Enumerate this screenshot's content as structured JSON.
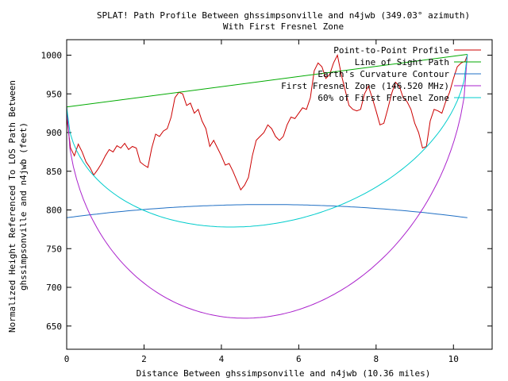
{
  "chart_data": {
    "type": "line",
    "title": "SPLAT! Path Profile Between ghssimpsonville and n4jwb (349.03° azimuth)",
    "subtitle": "With First Fresnel Zone",
    "xlabel": "Distance Between ghssimpsonville and n4jwb (10.36 miles)",
    "ylabel_line1": "Normalized Height Referenced To LOS Path Between",
    "ylabel_line2": "ghssimpsonville and n4jwb (feet)",
    "xlim": [
      0,
      11
    ],
    "ylim": [
      620,
      1020
    ],
    "xticks": [
      "0",
      "2",
      "4",
      "6",
      "8",
      "10"
    ],
    "yticks": [
      "650",
      "700",
      "750",
      "800",
      "850",
      "900",
      "950",
      "1000"
    ],
    "legend_position": "top-right",
    "grid": false,
    "series": [
      {
        "name": "Point-to-Point Profile",
        "color": "#cc0000",
        "x": [
          0,
          0.1,
          0.2,
          0.3,
          0.4,
          0.5,
          0.6,
          0.7,
          0.8,
          0.9,
          1.0,
          1.1,
          1.2,
          1.3,
          1.4,
          1.5,
          1.6,
          1.7,
          1.8,
          1.9,
          2.0,
          2.1,
          2.2,
          2.3,
          2.4,
          2.5,
          2.6,
          2.7,
          2.8,
          2.9,
          3.0,
          3.1,
          3.2,
          3.3,
          3.4,
          3.5,
          3.6,
          3.7,
          3.8,
          3.9,
          4.0,
          4.1,
          4.2,
          4.3,
          4.4,
          4.5,
          4.6,
          4.7,
          4.8,
          4.9,
          5.0,
          5.1,
          5.2,
          5.3,
          5.4,
          5.5,
          5.6,
          5.7,
          5.8,
          5.9,
          6.0,
          6.1,
          6.2,
          6.3,
          6.4,
          6.5,
          6.6,
          6.7,
          6.8,
          6.9,
          7.0,
          7.1,
          7.2,
          7.3,
          7.4,
          7.5,
          7.6,
          7.7,
          7.8,
          7.9,
          8.0,
          8.1,
          8.2,
          8.3,
          8.4,
          8.5,
          8.6,
          8.7,
          8.8,
          8.9,
          9.0,
          9.1,
          9.2,
          9.3,
          9.4,
          9.5,
          9.6,
          9.7,
          9.8,
          9.9,
          10.0,
          10.1,
          10.2,
          10.3,
          10.36
        ],
        "y": [
          920,
          880,
          870,
          885,
          875,
          862,
          855,
          845,
          852,
          860,
          870,
          878,
          875,
          883,
          880,
          886,
          878,
          882,
          880,
          862,
          858,
          855,
          880,
          898,
          895,
          902,
          905,
          920,
          945,
          952,
          950,
          935,
          938,
          925,
          930,
          915,
          905,
          882,
          890,
          880,
          870,
          858,
          860,
          850,
          838,
          826,
          832,
          842,
          870,
          890,
          895,
          900,
          910,
          905,
          895,
          890,
          895,
          910,
          920,
          918,
          925,
          932,
          930,
          945,
          980,
          990,
          985,
          970,
          975,
          990,
          1000,
          975,
          955,
          935,
          930,
          928,
          930,
          950,
          960,
          945,
          928,
          910,
          912,
          930,
          950,
          965,
          960,
          945,
          940,
          930,
          912,
          900,
          880,
          882,
          915,
          930,
          928,
          925,
          940,
          952,
          970,
          985,
          990,
          992,
          1000
        ]
      },
      {
        "name": "Line of Sight Path",
        "color": "#00aa00",
        "x": [
          0,
          10.36
        ],
        "y": [
          933,
          1001
        ]
      },
      {
        "name": "Earth's Curvature Contour",
        "color": "#1f6fc4",
        "curve": "parabola",
        "x": [
          0,
          5.18,
          10.36
        ],
        "y": [
          790,
          807,
          790
        ]
      },
      {
        "name": "First Fresnel Zone (146.520 MHz)",
        "color": "#aa22cc",
        "curve": "fresnel",
        "x": [
          0,
          5.18,
          10.36
        ],
        "y": [
          933,
          662,
          1001
        ]
      },
      {
        "name": "60% of First Fresnel Zone",
        "color": "#00cccc",
        "curve": "fresnel",
        "x": [
          0,
          5.18,
          10.36
        ],
        "y": [
          933,
          781,
          1001
        ]
      }
    ]
  }
}
